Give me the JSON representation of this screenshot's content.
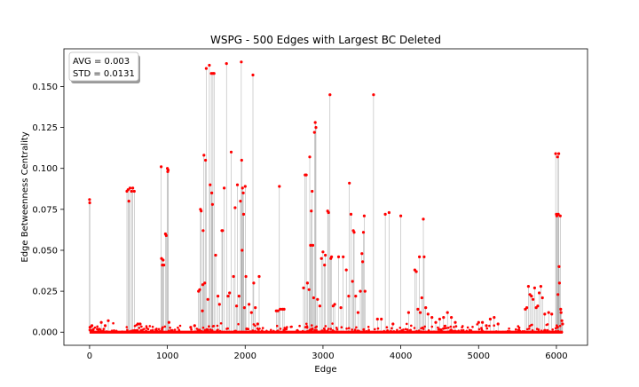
{
  "chart_data": {
    "type": "scatter",
    "title": "WSPG - 500 Edges with Largest BC Deleted",
    "xlabel": "Edge",
    "ylabel": "Edge Betweenness Centrality",
    "xlim": [
      -330,
      6400
    ],
    "ylim": [
      -0.008,
      0.173
    ],
    "x_ticks": [
      0,
      1000,
      2000,
      3000,
      4000,
      5000,
      6000
    ],
    "x_tick_labels": [
      "0",
      "1000",
      "2000",
      "3000",
      "4000",
      "5000",
      "6000"
    ],
    "y_ticks": [
      0.0,
      0.025,
      0.05,
      0.075,
      0.1,
      0.125,
      0.15
    ],
    "y_tick_labels": [
      "0.000",
      "0.025",
      "0.050",
      "0.075",
      "0.100",
      "0.125",
      "0.150"
    ],
    "stats_box": {
      "avg_label": "AVG = 0.003",
      "std_label": "STD = 0.0131",
      "placement": "top-left"
    },
    "point_color": "#ff0000",
    "stem_color": "#808080",
    "grid": false,
    "series": [
      {
        "points": [
          [
            0,
            0.081
          ],
          [
            2,
            0.079
          ],
          [
            5,
            0.003
          ],
          [
            30,
            0.004
          ],
          [
            150,
            0.006
          ],
          [
            200,
            0.004
          ],
          [
            240,
            0.007
          ],
          [
            480,
            0.086
          ],
          [
            495,
            0.087
          ],
          [
            505,
            0.08
          ],
          [
            520,
            0.088
          ],
          [
            540,
            0.086
          ],
          [
            555,
            0.088
          ],
          [
            575,
            0.086
          ],
          [
            620,
            0.005
          ],
          [
            650,
            0.005
          ],
          [
            920,
            0.101
          ],
          [
            925,
            0.045
          ],
          [
            935,
            0.041
          ],
          [
            945,
            0.044
          ],
          [
            955,
            0.041
          ],
          [
            975,
            0.06
          ],
          [
            985,
            0.059
          ],
          [
            1000,
            0.1
          ],
          [
            1005,
            0.098
          ],
          [
            1010,
            0.099
          ],
          [
            1020,
            0.006
          ],
          [
            1300,
            0.003
          ],
          [
            1350,
            0.004
          ],
          [
            1400,
            0.025
          ],
          [
            1415,
            0.026
          ],
          [
            1425,
            0.075
          ],
          [
            1435,
            0.074
          ],
          [
            1450,
            0.013
          ],
          [
            1455,
            0.029
          ],
          [
            1460,
            0.062
          ],
          [
            1470,
            0.108
          ],
          [
            1480,
            0.03
          ],
          [
            1490,
            0.105
          ],
          [
            1500,
            0.161
          ],
          [
            1520,
            0.02
          ],
          [
            1540,
            0.163
          ],
          [
            1550,
            0.09
          ],
          [
            1565,
            0.158
          ],
          [
            1570,
            0.085
          ],
          [
            1580,
            0.078
          ],
          [
            1585,
            0.158
          ],
          [
            1600,
            0.158
          ],
          [
            1620,
            0.047
          ],
          [
            1650,
            0.022
          ],
          [
            1670,
            0.017
          ],
          [
            1700,
            0.062
          ],
          [
            1710,
            0.062
          ],
          [
            1730,
            0.088
          ],
          [
            1760,
            0.164
          ],
          [
            1780,
            0.022
          ],
          [
            1800,
            0.024
          ],
          [
            1820,
            0.11
          ],
          [
            1850,
            0.034
          ],
          [
            1870,
            0.076
          ],
          [
            1890,
            0.016
          ],
          [
            1900,
            0.09
          ],
          [
            1920,
            0.022
          ],
          [
            1940,
            0.08
          ],
          [
            1950,
            0.165
          ],
          [
            1955,
            0.105
          ],
          [
            1960,
            0.05
          ],
          [
            1965,
            0.088
          ],
          [
            1975,
            0.085
          ],
          [
            1980,
            0.072
          ],
          [
            1990,
            0.015
          ],
          [
            2000,
            0.089
          ],
          [
            2010,
            0.034
          ],
          [
            2020,
            0.002
          ],
          [
            2050,
            0.017
          ],
          [
            2080,
            0.012
          ],
          [
            2100,
            0.157
          ],
          [
            2110,
            0.03
          ],
          [
            2130,
            0.015
          ],
          [
            2160,
            0.005
          ],
          [
            2180,
            0.034
          ],
          [
            2400,
            0.013
          ],
          [
            2420,
            0.013
          ],
          [
            2440,
            0.089
          ],
          [
            2450,
            0.014
          ],
          [
            2480,
            0.014
          ],
          [
            2500,
            0.014
          ],
          [
            2750,
            0.027
          ],
          [
            2770,
            0.096
          ],
          [
            2785,
            0.096
          ],
          [
            2800,
            0.03
          ],
          [
            2820,
            0.026
          ],
          [
            2830,
            0.107
          ],
          [
            2840,
            0.053
          ],
          [
            2850,
            0.074
          ],
          [
            2860,
            0.086
          ],
          [
            2870,
            0.053
          ],
          [
            2880,
            0.021
          ],
          [
            2890,
            0.122
          ],
          [
            2900,
            0.128
          ],
          [
            2910,
            0.125
          ],
          [
            2930,
            0.02
          ],
          [
            2960,
            0.016
          ],
          [
            2980,
            0.045
          ],
          [
            3000,
            0.049
          ],
          [
            3020,
            0.041
          ],
          [
            3030,
            0.047
          ],
          [
            3060,
            0.074
          ],
          [
            3070,
            0.073
          ],
          [
            3090,
            0.145
          ],
          [
            3100,
            0.045
          ],
          [
            3110,
            0.046
          ],
          [
            3130,
            0.016
          ],
          [
            3150,
            0.017
          ],
          [
            3200,
            0.046
          ],
          [
            3230,
            0.015
          ],
          [
            3260,
            0.046
          ],
          [
            3300,
            0.038
          ],
          [
            3330,
            0.022
          ],
          [
            3340,
            0.091
          ],
          [
            3360,
            0.072
          ],
          [
            3380,
            0.031
          ],
          [
            3390,
            0.062
          ],
          [
            3400,
            0.061
          ],
          [
            3420,
            0.022
          ],
          [
            3450,
            0.012
          ],
          [
            3480,
            0.025
          ],
          [
            3500,
            0.048
          ],
          [
            3510,
            0.043
          ],
          [
            3520,
            0.061
          ],
          [
            3530,
            0.071
          ],
          [
            3540,
            0.025
          ],
          [
            3650,
            0.145
          ],
          [
            3700,
            0.008
          ],
          [
            3750,
            0.008
          ],
          [
            3800,
            0.072
          ],
          [
            3850,
            0.073
          ],
          [
            3900,
            0.005
          ],
          [
            4000,
            0.071
          ],
          [
            4100,
            0.012
          ],
          [
            4180,
            0.038
          ],
          [
            4200,
            0.037
          ],
          [
            4220,
            0.014
          ],
          [
            4240,
            0.046
          ],
          [
            4250,
            0.012
          ],
          [
            4270,
            0.021
          ],
          [
            4290,
            0.069
          ],
          [
            4300,
            0.046
          ],
          [
            4320,
            0.015
          ],
          [
            4350,
            0.011
          ],
          [
            4400,
            0.009
          ],
          [
            4450,
            0.006
          ],
          [
            4500,
            0.008
          ],
          [
            4550,
            0.009
          ],
          [
            4600,
            0.012
          ],
          [
            4650,
            0.009
          ],
          [
            4700,
            0.006
          ],
          [
            5000,
            0.006
          ],
          [
            5050,
            0.006
          ],
          [
            5100,
            0.004
          ],
          [
            5150,
            0.008
          ],
          [
            5200,
            0.009
          ],
          [
            5250,
            0.005
          ],
          [
            5600,
            0.014
          ],
          [
            5620,
            0.015
          ],
          [
            5640,
            0.028
          ],
          [
            5660,
            0.023
          ],
          [
            5680,
            0.022
          ],
          [
            5700,
            0.02
          ],
          [
            5720,
            0.027
          ],
          [
            5740,
            0.015
          ],
          [
            5760,
            0.016
          ],
          [
            5780,
            0.024
          ],
          [
            5800,
            0.028
          ],
          [
            5820,
            0.021
          ],
          [
            5850,
            0.011
          ],
          [
            5900,
            0.012
          ],
          [
            5940,
            0.011
          ],
          [
            5990,
            0.109
          ],
          [
            6000,
            0.072
          ],
          [
            6005,
            0.071
          ],
          [
            6015,
            0.107
          ],
          [
            6020,
            0.023
          ],
          [
            6025,
            0.072
          ],
          [
            6030,
            0.109
          ],
          [
            6035,
            0.04
          ],
          [
            6040,
            0.03
          ],
          [
            6050,
            0.071
          ],
          [
            6055,
            0.014
          ],
          [
            6060,
            0.012
          ],
          [
            6070,
            0.007
          ],
          [
            6080,
            0.005
          ]
        ]
      }
    ]
  }
}
